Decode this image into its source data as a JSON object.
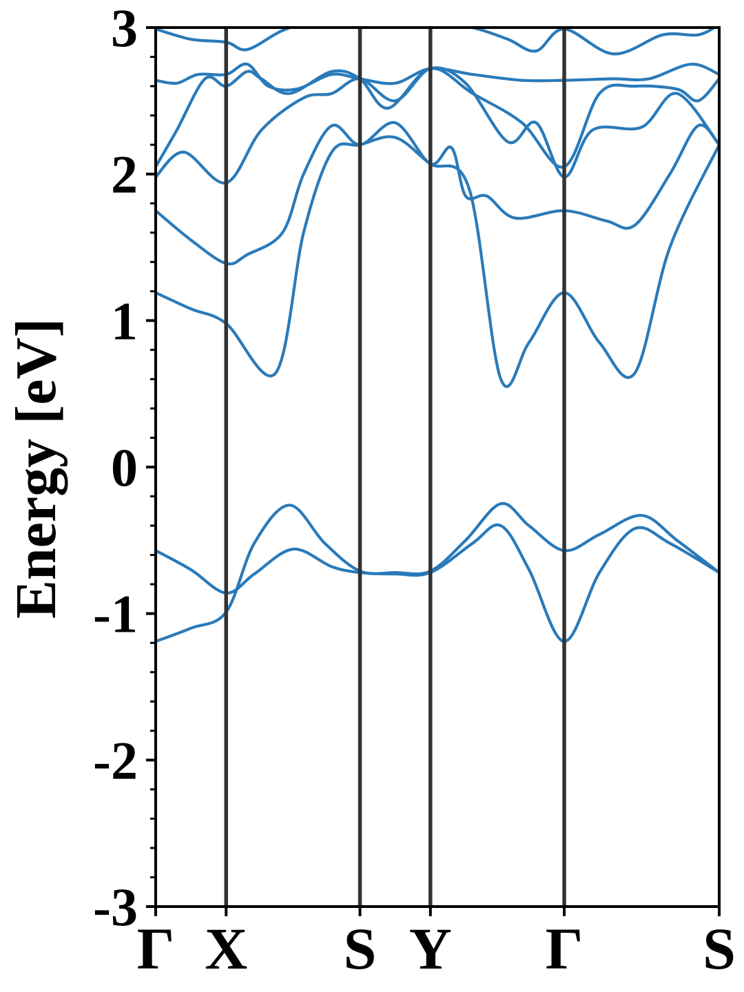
{
  "chart_data": {
    "type": "line",
    "title": "",
    "xlabel": "",
    "ylabel": "Energy [eV]",
    "ylim": [
      -3,
      3
    ],
    "yticks": [
      3,
      2,
      1,
      0,
      -1,
      -2,
      -3
    ],
    "ytick_labels": [
      "3",
      "2",
      "1",
      "0",
      "-1",
      "-2",
      "-3"
    ],
    "minor_ytick_step": 0.2,
    "xlim": [
      0,
      8
    ],
    "kpoints": [
      {
        "label": "Γ",
        "x": 0
      },
      {
        "label": "X",
        "x": 1
      },
      {
        "label": "S",
        "x": 2.9
      },
      {
        "label": "Y",
        "x": 3.9
      },
      {
        "label": "Γ",
        "x": 5.8
      },
      {
        "label": "S",
        "x": 8
      }
    ],
    "grid": false,
    "legend": "none",
    "colors": {
      "band": "#2a7ab9",
      "kline": "#333333",
      "axis": "#000000"
    },
    "series": [
      {
        "points": [
          [
            0,
            -0.57
          ],
          [
            0.5,
            -0.7
          ],
          [
            1,
            -0.86
          ],
          [
            1.4,
            -0.73
          ],
          [
            1.95,
            -0.56
          ],
          [
            2.5,
            -0.68
          ],
          [
            2.9,
            -0.72
          ],
          [
            3.4,
            -0.73
          ],
          [
            3.9,
            -0.72
          ],
          [
            4.5,
            -0.52
          ],
          [
            4.9,
            -0.4
          ],
          [
            5.3,
            -0.7
          ],
          [
            5.8,
            -1.19
          ],
          [
            6.3,
            -0.72
          ],
          [
            6.8,
            -0.42
          ],
          [
            7.3,
            -0.52
          ],
          [
            8,
            -0.72
          ]
        ]
      },
      {
        "points": [
          [
            0,
            -1.19
          ],
          [
            0.5,
            -1.1
          ],
          [
            1,
            -0.99
          ],
          [
            1.4,
            -0.52
          ],
          [
            1.9,
            -0.26
          ],
          [
            2.4,
            -0.52
          ],
          [
            2.9,
            -0.71
          ],
          [
            3.4,
            -0.72
          ],
          [
            3.9,
            -0.71
          ],
          [
            4.4,
            -0.5
          ],
          [
            4.9,
            -0.25
          ],
          [
            5.3,
            -0.4
          ],
          [
            5.8,
            -0.57
          ],
          [
            6.3,
            -0.46
          ],
          [
            6.9,
            -0.33
          ],
          [
            7.4,
            -0.5
          ],
          [
            8,
            -0.72
          ]
        ]
      },
      {
        "points": [
          [
            0,
            1.19
          ],
          [
            0.5,
            1.08
          ],
          [
            1,
            0.98
          ],
          [
            1.7,
            0.64
          ],
          [
            2.1,
            1.6
          ],
          [
            2.5,
            2.15
          ],
          [
            2.9,
            2.2
          ],
          [
            3.4,
            2.25
          ],
          [
            3.9,
            2.07
          ],
          [
            4.45,
            1.9
          ],
          [
            4.9,
            0.6
          ],
          [
            5.3,
            0.85
          ],
          [
            5.8,
            1.19
          ],
          [
            6.3,
            0.85
          ],
          [
            6.8,
            0.64
          ],
          [
            7.3,
            1.5
          ],
          [
            8,
            2.2
          ]
        ]
      },
      {
        "points": [
          [
            0,
            1.75
          ],
          [
            0.5,
            1.55
          ],
          [
            1,
            1.39
          ],
          [
            1.3,
            1.45
          ],
          [
            1.8,
            1.6
          ],
          [
            2.1,
            2.0
          ],
          [
            2.5,
            2.33
          ],
          [
            2.9,
            2.2
          ],
          [
            3.4,
            2.35
          ],
          [
            3.9,
            2.07
          ],
          [
            4.2,
            2.18
          ],
          [
            4.4,
            1.85
          ],
          [
            4.7,
            1.85
          ],
          [
            5.1,
            1.7
          ],
          [
            5.8,
            1.75
          ],
          [
            6.4,
            1.68
          ],
          [
            6.8,
            1.65
          ],
          [
            7.3,
            2.0
          ],
          [
            7.7,
            2.33
          ],
          [
            8,
            2.2
          ]
        ]
      },
      {
        "points": [
          [
            0,
            1.98
          ],
          [
            0.4,
            2.15
          ],
          [
            1,
            1.94
          ],
          [
            1.5,
            2.3
          ],
          [
            2.1,
            2.52
          ],
          [
            2.5,
            2.55
          ],
          [
            2.9,
            2.65
          ],
          [
            3.4,
            2.5
          ],
          [
            3.9,
            2.72
          ],
          [
            4.4,
            2.62
          ],
          [
            5.0,
            2.22
          ],
          [
            5.4,
            2.35
          ],
          [
            5.8,
            1.98
          ],
          [
            6.2,
            2.3
          ],
          [
            6.9,
            2.32
          ],
          [
            7.4,
            2.55
          ],
          [
            8,
            2.2
          ]
        ]
      },
      {
        "points": [
          [
            0,
            2.05
          ],
          [
            0.3,
            2.3
          ],
          [
            0.7,
            2.65
          ],
          [
            1,
            2.6
          ],
          [
            1.3,
            2.7
          ],
          [
            1.5,
            2.65
          ],
          [
            1.9,
            2.55
          ],
          [
            2.5,
            2.7
          ],
          [
            2.9,
            2.65
          ],
          [
            3.3,
            2.45
          ],
          [
            3.9,
            2.72
          ],
          [
            4.5,
            2.55
          ],
          [
            5.2,
            2.35
          ],
          [
            5.8,
            2.05
          ],
          [
            6.3,
            2.55
          ],
          [
            6.8,
            2.6
          ],
          [
            7.4,
            2.58
          ],
          [
            7.7,
            2.5
          ],
          [
            8,
            2.65
          ]
        ]
      },
      {
        "points": [
          [
            0,
            2.64
          ],
          [
            0.3,
            2.62
          ],
          [
            0.6,
            2.68
          ],
          [
            1,
            2.68
          ],
          [
            1.3,
            2.75
          ],
          [
            1.6,
            2.6
          ],
          [
            2.0,
            2.58
          ],
          [
            2.5,
            2.68
          ],
          [
            2.9,
            2.65
          ],
          [
            3.4,
            2.62
          ],
          [
            3.9,
            2.72
          ],
          [
            4.5,
            2.68
          ],
          [
            5.2,
            2.64
          ],
          [
            5.8,
            2.64
          ],
          [
            6.5,
            2.65
          ],
          [
            7.0,
            2.65
          ],
          [
            7.6,
            2.75
          ],
          [
            8,
            2.68
          ]
        ]
      },
      {
        "points": [
          [
            0,
            2.99
          ],
          [
            0.5,
            2.92
          ],
          [
            1,
            2.9
          ],
          [
            1.3,
            2.85
          ],
          [
            1.8,
            2.98
          ],
          [
            2.3,
            3.05
          ],
          [
            2.9,
            3.05
          ],
          [
            3.3,
            3.05
          ],
          [
            3.9,
            3.05
          ],
          [
            4.5,
            3.0
          ],
          [
            5.0,
            2.92
          ],
          [
            5.4,
            2.84
          ],
          [
            5.8,
            2.99
          ],
          [
            6.5,
            2.82
          ],
          [
            7.2,
            2.95
          ],
          [
            7.7,
            2.95
          ],
          [
            8,
            3.02
          ]
        ]
      }
    ]
  }
}
